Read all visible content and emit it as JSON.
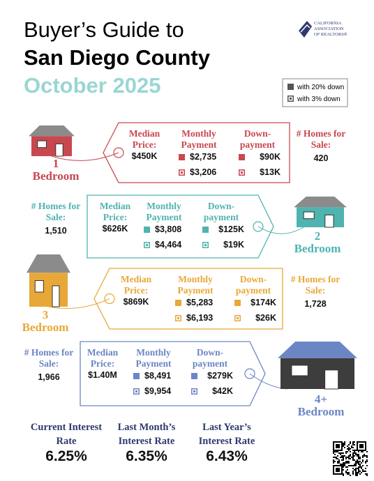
{
  "header": {
    "title_line1": "Buyer’s Guide to",
    "title_line2": "San Diego County",
    "title_line3": "October 2025"
  },
  "logo": [
    "CALIFORNIA",
    "ASSOCIATION",
    "OF REALTORS®"
  ],
  "legend": [
    "with 20% down",
    "with 3% down"
  ],
  "labels": {
    "median": "Median Price:",
    "monthly": "Monthly Payment",
    "down": "Down-payment",
    "homes": "# Homes for Sale:"
  },
  "tiers": [
    {
      "number": "1",
      "bedroom": "Bedroom",
      "median": "$450K",
      "monthly": [
        "$2,735",
        "$3,206"
      ],
      "down": [
        "$90K",
        "$13K"
      ],
      "homes": "420"
    },
    {
      "number": "2",
      "bedroom": "Bedroom",
      "median": "$626K",
      "monthly": [
        "$3,808",
        "$4,464"
      ],
      "down": [
        "$125K",
        "$19K"
      ],
      "homes": "1,510"
    },
    {
      "number": "3",
      "bedroom": "Bedroom",
      "median": "$869K",
      "monthly": [
        "$5,283",
        "$6,193"
      ],
      "down": [
        "$174K",
        "$26K"
      ],
      "homes": "1,728"
    },
    {
      "number": "4+",
      "bedroom": "Bedroom",
      "median": "$1.40M",
      "monthly": [
        "$8,491",
        "$9,954"
      ],
      "down": [
        "$279K",
        "$42K"
      ],
      "homes": "1,966"
    }
  ],
  "rates": [
    {
      "label": "Current Interest Rate",
      "value": "6.25%"
    },
    {
      "label": "Last Month’s Interest Rate",
      "value": "6.35%"
    },
    {
      "label": "Last Year’s Interest Rate",
      "value": "6.43%"
    }
  ]
}
